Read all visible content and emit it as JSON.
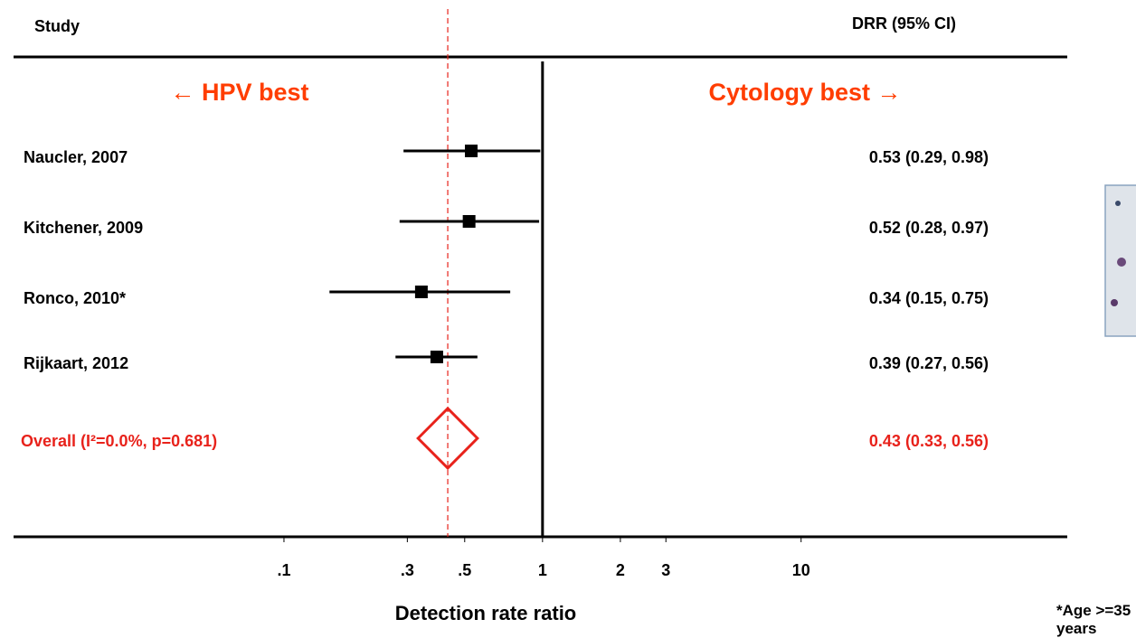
{
  "chart_data": {
    "type": "forest",
    "left_header": "Study",
    "right_header": "DRR (95% CI)",
    "left_annotation": "← HPV best",
    "right_annotation": "Cytology best →",
    "xlabel": "Detection rate ratio",
    "footnote": "*Age >=35 years",
    "categories": [
      "Naucler, 2007",
      "Kitchener, 2009",
      "Ronco, 2010*",
      "Rijkaart, 2012"
    ],
    "values": [
      0.53,
      0.52,
      0.34,
      0.39
    ],
    "lower": [
      0.29,
      0.28,
      0.15,
      0.27
    ],
    "upper": [
      0.98,
      0.97,
      0.75,
      0.56
    ],
    "value_labels": [
      "0.53 (0.29, 0.98)",
      "0.52 (0.28, 0.97)",
      "0.34 (0.15, 0.75)",
      "0.39 (0.27, 0.56)"
    ],
    "color": "#000000",
    "overall": {
      "name": "Overall (I²=0.0%, p=0.681)",
      "value": 0.43,
      "lower": 0.33,
      "upper": 0.56,
      "value_label": "0.43 (0.33, 0.56)",
      "color": "#e8221b"
    },
    "annotation_color": "#ff3d00",
    "log_x": true,
    "xlim": [
      0.009,
      107
    ],
    "xticks": [
      {
        "value": 0.1,
        "label": ".1"
      },
      {
        "value": 0.3,
        "label": ".3"
      },
      {
        "value": 0.5,
        "label": ".5"
      },
      1,
      2,
      3,
      10
    ]
  }
}
